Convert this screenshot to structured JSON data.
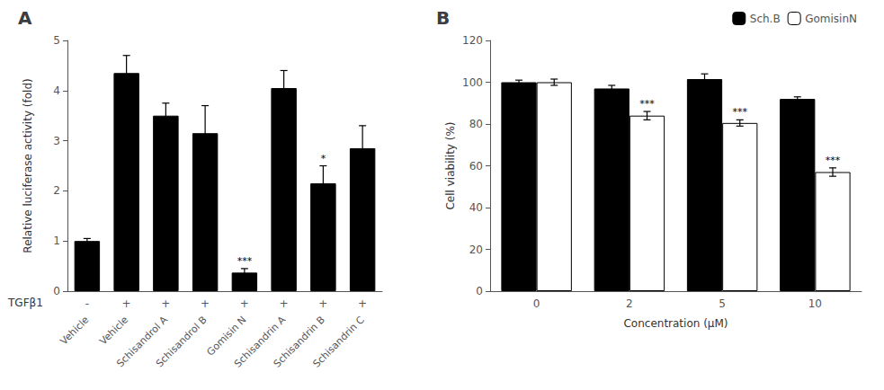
{
  "chart_data": [
    {
      "type": "bar",
      "title": "A",
      "ylabel": "Relative luciferase activity (fold)",
      "categories": [
        "Vehicle",
        "Vehicle",
        "Schisandrol A",
        "Schisandrol B",
        "Gomisin N",
        "Schisandrin A",
        "Schisandrin B",
        "Schisandrin C"
      ],
      "tgfb1_label": "TGFβ1",
      "tgfb1": [
        "-",
        "+",
        "+",
        "+",
        "+",
        "+",
        "+",
        "+"
      ],
      "values": [
        1.0,
        4.35,
        3.5,
        3.15,
        0.37,
        4.05,
        2.15,
        2.85
      ],
      "errors": [
        0.05,
        0.35,
        0.25,
        0.55,
        0.08,
        0.35,
        0.35,
        0.45
      ],
      "significance": [
        null,
        null,
        null,
        null,
        "***",
        null,
        "*",
        null
      ],
      "color": "#000000",
      "ylim": [
        0,
        5
      ],
      "yticks": [
        0,
        1,
        2,
        3,
        4,
        5
      ],
      "grid": false
    },
    {
      "type": "bar",
      "title": "B",
      "ylabel": "Cell viability (%)",
      "xlabel": "Concentration (μM)",
      "categories": [
        "0",
        "2",
        "5",
        "10"
      ],
      "series": [
        {
          "name": "Sch.B",
          "color": "#000000",
          "values": [
            100.0,
            97.0,
            101.5,
            92.0
          ],
          "errors": [
            1.0,
            1.5,
            2.5,
            1.0
          ]
        },
        {
          "name": "GomisinN",
          "color": "#ffffff",
          "values": [
            100.0,
            84.0,
            80.5,
            57.0
          ],
          "errors": [
            1.5,
            2.0,
            1.5,
            2.0
          ],
          "significance": [
            null,
            "***",
            "***",
            "***"
          ]
        }
      ],
      "ylim": [
        0,
        120
      ],
      "yticks": [
        0,
        20,
        40,
        60,
        80,
        100,
        120
      ],
      "grid": false,
      "legend": "upper right"
    }
  ]
}
